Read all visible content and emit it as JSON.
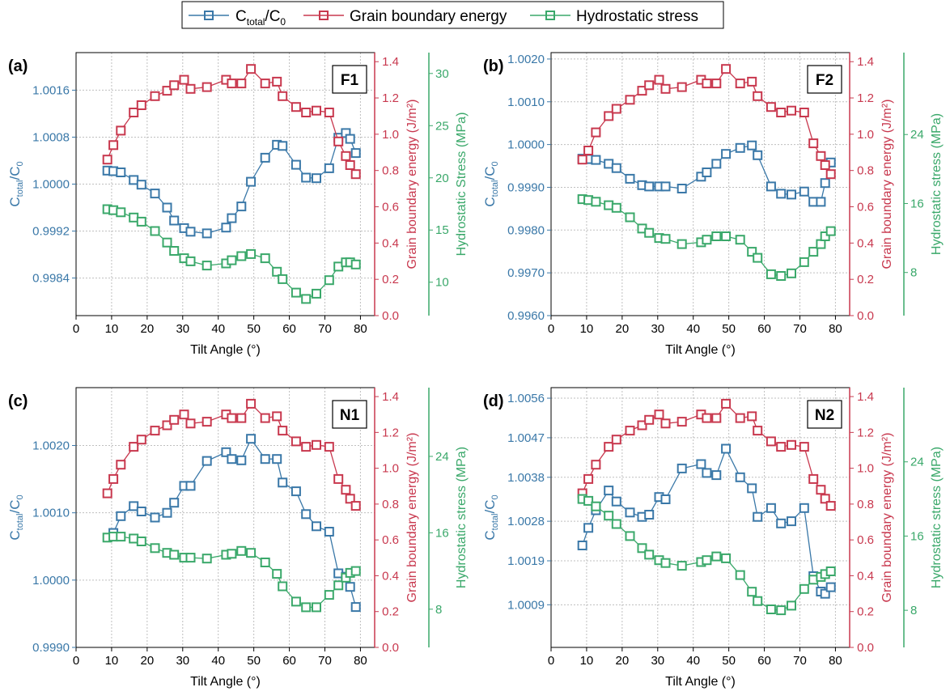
{
  "legend": {
    "items": [
      {
        "prefix": "C",
        "sub": "total",
        "suffix": "/C",
        "sub2": "0",
        "color": "#3a78a8"
      },
      {
        "label": "Grain boundary energy",
        "color": "#c8384e"
      },
      {
        "label": "Hydrostatic stress",
        "color": "#3aa86a"
      }
    ]
  },
  "colors": {
    "blue": "#3a78a8",
    "red": "#c8384e",
    "green": "#3aa86a",
    "grid": "#bfbfbf"
  },
  "chart_data": [
    {
      "panel": "(a)",
      "tag": "F1",
      "type": "scatter",
      "xlabel": "Tilt Angle (°)",
      "xlim": [
        0,
        84
      ],
      "xticks": [
        0,
        10,
        20,
        30,
        40,
        50,
        60,
        70,
        80
      ],
      "y_left": {
        "label_main": "C",
        "label_sub": "total",
        "label_mid": "/C",
        "label_sub2": "0",
        "lim": [
          0.99776,
          1.00224
        ],
        "ticks": [
          0.9984,
          0.9992,
          1.0,
          1.0008,
          1.0016
        ],
        "tick_labels": [
          "0.9984",
          "0.9992",
          "1.0000",
          "1.0008",
          "1.0016"
        ]
      },
      "y_right1": {
        "label": "Grain boundary energy (J/m²)",
        "lim": [
          0,
          1.45
        ],
        "ticks": [
          0,
          0.2,
          0.4,
          0.6,
          0.8,
          1.0,
          1.2,
          1.4
        ],
        "tick_labels": [
          "0.0",
          "0.2",
          "0.4",
          "0.6",
          "0.8",
          "1.0",
          "1.2",
          "1.4"
        ]
      },
      "y_right2": {
        "label": "Hydrostatic Stress (MPa)",
        "lim": [
          6.8,
          32
        ],
        "ticks": [
          10,
          15,
          20,
          25,
          30
        ],
        "tick_labels": [
          "10",
          "15",
          "20",
          "25",
          "30"
        ]
      },
      "series": [
        {
          "name": "C_total/C_0",
          "axis": "left",
          "x": [
            8.8,
            10.5,
            12.6,
            16.2,
            18.4,
            22.2,
            25.6,
            27.6,
            30.4,
            32.2,
            36.8,
            42.2,
            43.8,
            46.5,
            49.2,
            53.2,
            56.5,
            58.1,
            61.9,
            64.7,
            67.6,
            71.2,
            73.8,
            75.9,
            77.1,
            78.7
          ],
          "y": [
            1.00023,
            1.00022,
            1.0002,
            1.00007,
            0.99999,
            0.99984,
            0.9996,
            0.99938,
            0.99925,
            0.99919,
            0.99916,
            0.99926,
            0.99942,
            0.99962,
            1.00004,
            1.00045,
            1.00067,
            1.00065,
            1.00033,
            1.00011,
            1.0001,
            1.00027,
            1.00079,
            1.00087,
            1.00077,
            1.00053
          ]
        },
        {
          "name": "Grain boundary energy",
          "axis": "right1",
          "x": [
            8.8,
            10.5,
            12.6,
            16.2,
            18.4,
            22.2,
            25.6,
            27.6,
            30.4,
            32.2,
            36.8,
            42.2,
            43.8,
            46.5,
            49.2,
            53.2,
            56.5,
            58.1,
            61.9,
            64.7,
            67.6,
            71.2,
            73.8,
            75.9,
            77.1,
            78.7
          ],
          "y": [
            0.86,
            0.94,
            1.02,
            1.12,
            1.16,
            1.21,
            1.24,
            1.27,
            1.3,
            1.25,
            1.26,
            1.3,
            1.28,
            1.28,
            1.36,
            1.28,
            1.29,
            1.21,
            1.15,
            1.12,
            1.13,
            1.12,
            0.96,
            0.88,
            0.83,
            0.78
          ]
        },
        {
          "name": "Hydrostatic stress",
          "axis": "right2",
          "x": [
            8.8,
            10.5,
            12.6,
            16.2,
            18.4,
            22.2,
            25.6,
            27.6,
            30.4,
            32.2,
            36.8,
            42.2,
            43.8,
            46.5,
            49.2,
            53.2,
            56.5,
            58.1,
            61.9,
            64.7,
            67.6,
            71.2,
            73.8,
            75.9,
            77.1,
            78.7
          ],
          "y": [
            17.0,
            16.9,
            16.7,
            16.2,
            15.8,
            14.9,
            13.8,
            13.0,
            12.3,
            12.0,
            11.6,
            11.8,
            12.1,
            12.5,
            12.7,
            12.3,
            11.0,
            10.3,
            9.0,
            8.4,
            8.9,
            10.2,
            11.5,
            11.9,
            11.9,
            11.7
          ]
        }
      ]
    },
    {
      "panel": "(b)",
      "tag": "F2",
      "type": "scatter",
      "xlabel": "Tilt Angle (°)",
      "xlim": [
        0,
        84
      ],
      "xticks": [
        0,
        10,
        20,
        30,
        40,
        50,
        60,
        70,
        80
      ],
      "y_left": {
        "label_main": "C",
        "label_sub": "total",
        "label_mid": "/C",
        "label_sub2": "0",
        "lim": [
          0.996,
          1.00215
        ],
        "ticks": [
          0.996,
          0.997,
          0.998,
          0.999,
          1.0,
          1.001,
          1.002
        ],
        "tick_labels": [
          "0.9960",
          "0.9970",
          "0.9980",
          "0.9990",
          "1.0000",
          "1.0010",
          "1.0020"
        ]
      },
      "y_right1": {
        "label": "Grain boundary energy (J/m²)",
        "lim": [
          0,
          1.45
        ],
        "ticks": [
          0,
          0.2,
          0.4,
          0.6,
          0.8,
          1.0,
          1.2,
          1.4
        ],
        "tick_labels": [
          "0.0",
          "0.2",
          "0.4",
          "0.6",
          "0.8",
          "1.0",
          "1.2",
          "1.4"
        ]
      },
      "y_right2": {
        "label": "Hydrostatic stress (MPa)",
        "lim": [
          3.0,
          33.5
        ],
        "ticks": [
          8,
          16,
          24
        ],
        "tick_labels": [
          "8",
          "16",
          "24"
        ]
      },
      "series": [
        {
          "name": "C_total/C_0",
          "axis": "left",
          "x": [
            8.8,
            10.5,
            12.6,
            16.2,
            18.4,
            22.2,
            25.6,
            27.6,
            30.4,
            32.2,
            36.8,
            42.2,
            43.8,
            46.5,
            49.2,
            53.2,
            56.5,
            58.1,
            61.9,
            64.7,
            67.6,
            71.2,
            73.8,
            75.9,
            77.1,
            78.7
          ],
          "y": [
            0.99967,
            0.99966,
            0.99964,
            0.99955,
            0.99945,
            0.9992,
            0.99905,
            0.99902,
            0.99902,
            0.99902,
            0.99897,
            0.99925,
            0.99935,
            0.99955,
            0.99978,
            0.99992,
            0.99998,
            0.99975,
            0.99902,
            0.99885,
            0.99883,
            0.9989,
            0.99866,
            0.99866,
            0.9991,
            0.99958
          ]
        },
        {
          "name": "Grain boundary energy",
          "axis": "right1",
          "x": [
            8.8,
            10.5,
            12.6,
            16.2,
            18.4,
            22.2,
            25.6,
            27.6,
            30.4,
            32.2,
            36.8,
            42.2,
            43.8,
            46.5,
            49.2,
            53.2,
            56.5,
            58.1,
            61.9,
            64.7,
            67.6,
            71.2,
            73.8,
            75.9,
            77.1,
            78.7
          ],
          "y": [
            0.86,
            0.91,
            1.01,
            1.1,
            1.14,
            1.19,
            1.24,
            1.27,
            1.3,
            1.25,
            1.26,
            1.3,
            1.28,
            1.28,
            1.36,
            1.28,
            1.29,
            1.21,
            1.15,
            1.12,
            1.13,
            1.12,
            0.95,
            0.88,
            0.83,
            0.78
          ]
        },
        {
          "name": "Hydrostatic stress",
          "axis": "right2",
          "x": [
            8.8,
            10.5,
            12.6,
            16.2,
            18.4,
            22.2,
            25.6,
            27.6,
            30.4,
            32.2,
            36.8,
            42.2,
            43.8,
            46.5,
            49.2,
            53.2,
            56.5,
            58.1,
            61.9,
            64.7,
            67.6,
            71.2,
            73.8,
            75.9,
            77.1,
            78.7
          ],
          "y": [
            16.5,
            16.4,
            16.2,
            15.8,
            15.5,
            14.4,
            13.1,
            12.6,
            12.0,
            11.9,
            11.3,
            11.5,
            11.8,
            12.2,
            12.2,
            11.8,
            10.4,
            9.7,
            7.8,
            7.6,
            7.9,
            9.2,
            10.4,
            11.3,
            12.2,
            12.8
          ]
        }
      ]
    },
    {
      "panel": "(c)",
      "tag": "N1",
      "type": "scatter",
      "xlabel": "Tilt Angle (°)",
      "xlim": [
        0,
        84
      ],
      "xticks": [
        0,
        10,
        20,
        30,
        40,
        50,
        60,
        70,
        80
      ],
      "y_left": {
        "label_main": "C",
        "label_sub": "total",
        "label_mid": "/C",
        "label_sub2": "0",
        "lim": [
          0.999,
          1.00286
        ],
        "ticks": [
          0.999,
          1.0,
          1.001,
          1.002
        ],
        "tick_labels": [
          "0.9990",
          "1.0000",
          "1.0010",
          "1.0020"
        ]
      },
      "y_right1": {
        "label": "Grain boundary energy (J/m²)",
        "lim": [
          0,
          1.45
        ],
        "ticks": [
          0,
          0.2,
          0.4,
          0.6,
          0.8,
          1.0,
          1.2,
          1.4
        ],
        "tick_labels": [
          "0.0",
          "0.2",
          "0.4",
          "0.6",
          "0.8",
          "1.0",
          "1.2",
          "1.4"
        ]
      },
      "y_right2": {
        "label": "Hydrostatic stress (MPa)",
        "lim": [
          4.0,
          31.2
        ],
        "ticks": [
          8,
          16,
          24
        ],
        "tick_labels": [
          "8",
          "16",
          "24"
        ]
      },
      "series": [
        {
          "name": "C_total/C_0",
          "axis": "left",
          "x": [
            10.5,
            12.6,
            16.2,
            18.4,
            22.2,
            25.6,
            27.6,
            30.4,
            32.2,
            36.8,
            42.2,
            43.8,
            46.5,
            49.2,
            53.2,
            56.5,
            58.1,
            61.9,
            64.7,
            67.6,
            71.2,
            73.8,
            75.9,
            77.1,
            78.7
          ],
          "y": [
            1.0007,
            1.00095,
            1.0011,
            1.00102,
            1.00093,
            1.001,
            1.00115,
            1.0014,
            1.0014,
            1.00177,
            1.0019,
            1.0018,
            1.00178,
            1.0021,
            1.0018,
            1.0018,
            1.00145,
            1.00132,
            1.00098,
            1.0008,
            1.00072,
            1.0001,
            1.00005,
            0.9999,
            0.9996
          ]
        },
        {
          "name": "Grain boundary energy",
          "axis": "right1",
          "x": [
            8.8,
            10.5,
            12.6,
            16.2,
            18.4,
            22.2,
            25.6,
            27.6,
            30.4,
            32.2,
            36.8,
            42.2,
            43.8,
            46.5,
            49.2,
            53.2,
            56.5,
            58.1,
            61.9,
            64.7,
            67.6,
            71.2,
            73.8,
            75.9,
            77.1,
            78.7
          ],
          "y": [
            0.86,
            0.94,
            1.02,
            1.12,
            1.16,
            1.21,
            1.24,
            1.27,
            1.3,
            1.25,
            1.26,
            1.3,
            1.28,
            1.28,
            1.36,
            1.28,
            1.29,
            1.21,
            1.15,
            1.12,
            1.13,
            1.12,
            0.94,
            0.88,
            0.83,
            0.79
          ]
        },
        {
          "name": "Hydrostatic stress",
          "axis": "right2",
          "x": [
            8.8,
            10.5,
            12.6,
            16.2,
            18.4,
            22.2,
            25.6,
            27.6,
            30.4,
            32.2,
            36.8,
            42.2,
            43.8,
            46.5,
            49.2,
            53.2,
            56.5,
            58.1,
            61.9,
            64.7,
            67.6,
            71.2,
            73.8,
            75.9,
            77.1,
            78.7
          ],
          "y": [
            15.5,
            15.6,
            15.6,
            15.4,
            15.1,
            14.4,
            13.9,
            13.7,
            13.4,
            13.4,
            13.3,
            13.7,
            13.8,
            14.1,
            13.9,
            12.9,
            11.7,
            10.4,
            8.8,
            8.2,
            8.2,
            9.5,
            10.5,
            11.3,
            11.8,
            12.0
          ]
        }
      ]
    },
    {
      "panel": "(d)",
      "tag": "N2",
      "type": "scatter",
      "xlabel": "Tilt Angle (°)",
      "xlim": [
        0,
        84
      ],
      "xticks": [
        0,
        10,
        20,
        30,
        40,
        50,
        60,
        70,
        80
      ],
      "y_left": {
        "label_main": "C",
        "label_sub": "total",
        "label_mid": "/C",
        "label_sub2": "0",
        "lim": [
          0.99993,
          1.00584
        ],
        "ticks": [
          1.0009,
          1.0019,
          1.0028,
          1.0038,
          1.0047,
          1.0056
        ],
        "tick_labels": [
          "1.0009",
          "1.0019",
          "1.0028",
          "1.0038",
          "1.0047",
          "1.0056"
        ]
      },
      "y_right1": {
        "label": "Grain boundary energy (J/m²)",
        "lim": [
          0,
          1.45
        ],
        "ticks": [
          0,
          0.2,
          0.4,
          0.6,
          0.8,
          1.0,
          1.2,
          1.4
        ],
        "tick_labels": [
          "0.0",
          "0.2",
          "0.4",
          "0.6",
          "0.8",
          "1.0",
          "1.2",
          "1.4"
        ]
      },
      "y_right2": {
        "label": "Hydrostatic stress (MPa)",
        "lim": [
          4.0,
          32.0
        ],
        "ticks": [
          8,
          16,
          24
        ],
        "tick_labels": [
          "8",
          "16",
          "24"
        ]
      },
      "series": [
        {
          "name": "C_total/C_0",
          "axis": "left",
          "x": [
            8.8,
            10.5,
            12.6,
            16.2,
            18.4,
            22.2,
            25.6,
            27.6,
            30.4,
            32.2,
            36.8,
            42.2,
            43.8,
            46.5,
            49.2,
            53.2,
            56.5,
            58.1,
            61.9,
            64.7,
            67.6,
            71.2,
            73.8,
            75.9,
            77.1,
            78.7
          ],
          "y": [
            1.00225,
            1.00265,
            1.00305,
            1.0035,
            1.00325,
            1.003,
            1.0029,
            1.00295,
            1.00335,
            1.0033,
            1.004,
            1.0041,
            1.0039,
            1.00385,
            1.00445,
            1.0038,
            1.00355,
            1.0029,
            1.0031,
            1.00275,
            1.0028,
            1.0031,
            1.00155,
            1.0012,
            1.00115,
            1.0013
          ]
        },
        {
          "name": "Grain boundary energy",
          "axis": "right1",
          "x": [
            8.8,
            10.5,
            12.6,
            16.2,
            18.4,
            22.2,
            25.6,
            27.6,
            30.4,
            32.2,
            36.8,
            42.2,
            43.8,
            46.5,
            49.2,
            53.2,
            56.5,
            58.1,
            61.9,
            64.7,
            67.6,
            71.2,
            73.8,
            75.9,
            77.1,
            78.7
          ],
          "y": [
            0.86,
            0.94,
            1.02,
            1.12,
            1.16,
            1.21,
            1.24,
            1.27,
            1.3,
            1.25,
            1.26,
            1.3,
            1.28,
            1.28,
            1.36,
            1.28,
            1.29,
            1.21,
            1.15,
            1.12,
            1.13,
            1.12,
            0.94,
            0.88,
            0.83,
            0.79
          ]
        },
        {
          "name": "Hydrostatic stress",
          "axis": "right2",
          "x": [
            8.8,
            10.5,
            12.6,
            16.2,
            18.4,
            22.2,
            25.6,
            27.6,
            30.4,
            32.2,
            36.8,
            42.2,
            43.8,
            46.5,
            49.2,
            53.2,
            56.5,
            58.1,
            61.9,
            64.7,
            67.6,
            71.2,
            73.8,
            75.9,
            77.1,
            78.7
          ],
          "y": [
            20.0,
            19.8,
            19.2,
            18.2,
            17.3,
            16.0,
            14.7,
            14.0,
            13.4,
            13.1,
            12.8,
            13.2,
            13.4,
            13.8,
            13.6,
            11.8,
            10.0,
            9.0,
            8.1,
            8.0,
            8.5,
            10.3,
            11.3,
            11.6,
            11.9,
            12.2
          ]
        }
      ]
    }
  ]
}
